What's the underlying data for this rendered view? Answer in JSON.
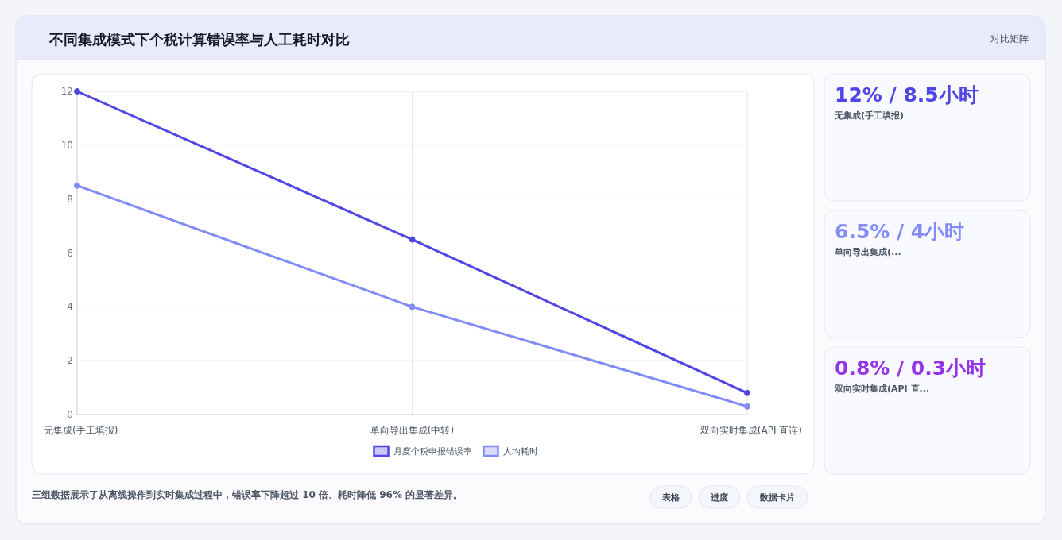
{
  "chart_data": [
    {
      "type": "line",
      "title": "不同集成模式下个税计算错误率与人工耗时对比",
      "categories": [
        "无集成(手工填报)",
        "单向导出集成(中转)",
        "双向实时集成(API 直连)"
      ],
      "series": [
        {
          "name": "月度个税申报错误率",
          "color": "#4f46e5",
          "values": [
            12,
            6.5,
            0.8
          ]
        },
        {
          "name": "人均耗时",
          "color": "#818cf8",
          "values": [
            8.5,
            4,
            0.3
          ]
        }
      ],
      "ylim": [
        0,
        12
      ],
      "yticks": [
        0,
        2,
        4,
        6,
        8,
        10,
        12
      ],
      "grid": true,
      "legend": "bottom",
      "marker": "circle",
      "annotations": [
        "三组数据展示了从离线操作到实时集成过程中，错误率下降超过 10 倍、耗时降低 96% 的显著差异。",
        "表格",
        "进度",
        "数据卡片"
      ]
    },
    {
      "type": "other",
      "annotations": [
        "对比矩阵",
        "12% / 8.5小时",
        "无集成(手工填报)",
        "6.5% / 4小时",
        "单向导出集成(...",
        "0.8% / 0.3小时",
        "双向实时集成(API 直..."
      ],
      "colors": [
        "#4f46e5",
        "#818cf8",
        "#9333ea"
      ]
    }
  ]
}
